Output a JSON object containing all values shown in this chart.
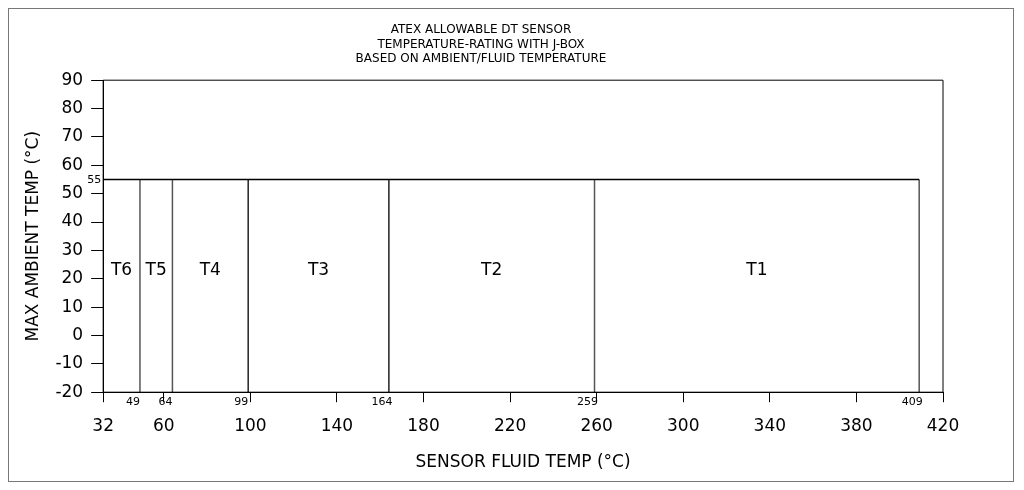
{
  "chart_data": {
    "type": "line",
    "title": "ATEX ALLOWABLE DT SENSOR",
    "subtitle": "TEMPERATURE-RATING WITH J-BOX\nBASED ON AMBIENT/FLUID TEMPERATURE",
    "xlabel": "SENSOR FLUID TEMP (°C)",
    "ylabel": "MAX AMBIENT TEMP (°C)",
    "xlim": [
      32,
      420
    ],
    "xticks": [
      32,
      60,
      100,
      140,
      180,
      220,
      260,
      300,
      340,
      380,
      420
    ],
    "ylim": [
      -20,
      90
    ],
    "yticks": [
      -20,
      -10,
      0,
      10,
      20,
      30,
      40,
      50,
      60,
      70,
      80,
      90
    ],
    "series": [
      {
        "color": "#000000",
        "x": [
          32,
          409
        ],
        "values": [
          55,
          55
        ]
      },
      {
        "color": "#555555",
        "x": [
          49,
          49
        ],
        "values": [
          -20,
          55
        ]
      },
      {
        "color": "#555555",
        "x": [
          64,
          64
        ],
        "values": [
          -20,
          55
        ]
      },
      {
        "color": "#222222",
        "x": [
          99,
          99
        ],
        "values": [
          -20,
          55
        ]
      },
      {
        "color": "#222222",
        "x": [
          164,
          164
        ],
        "values": [
          -20,
          55
        ]
      },
      {
        "color": "#555555",
        "x": [
          259,
          259
        ],
        "values": [
          -20,
          55
        ]
      },
      {
        "color": "#555555",
        "x": [
          409,
          409
        ],
        "values": [
          -20,
          55
        ]
      }
    ],
    "annotations": [
      {
        "text": "55",
        "x": 32,
        "y": 55
      },
      {
        "text": "49",
        "x": 49,
        "y": -20
      },
      {
        "text": "64",
        "x": 64,
        "y": -20
      },
      {
        "text": "99",
        "x": 99,
        "y": -20
      },
      {
        "text": "164",
        "x": 164,
        "y": -20
      },
      {
        "text": "259",
        "x": 259,
        "y": -20
      },
      {
        "text": "409",
        "x": 409,
        "y": -20
      },
      "T6",
      "T5",
      "T4",
      "T3",
      "T2",
      "T1"
    ],
    "grid": false,
    "legend": false,
    "marker": "none",
    "line_style": "solid"
  }
}
